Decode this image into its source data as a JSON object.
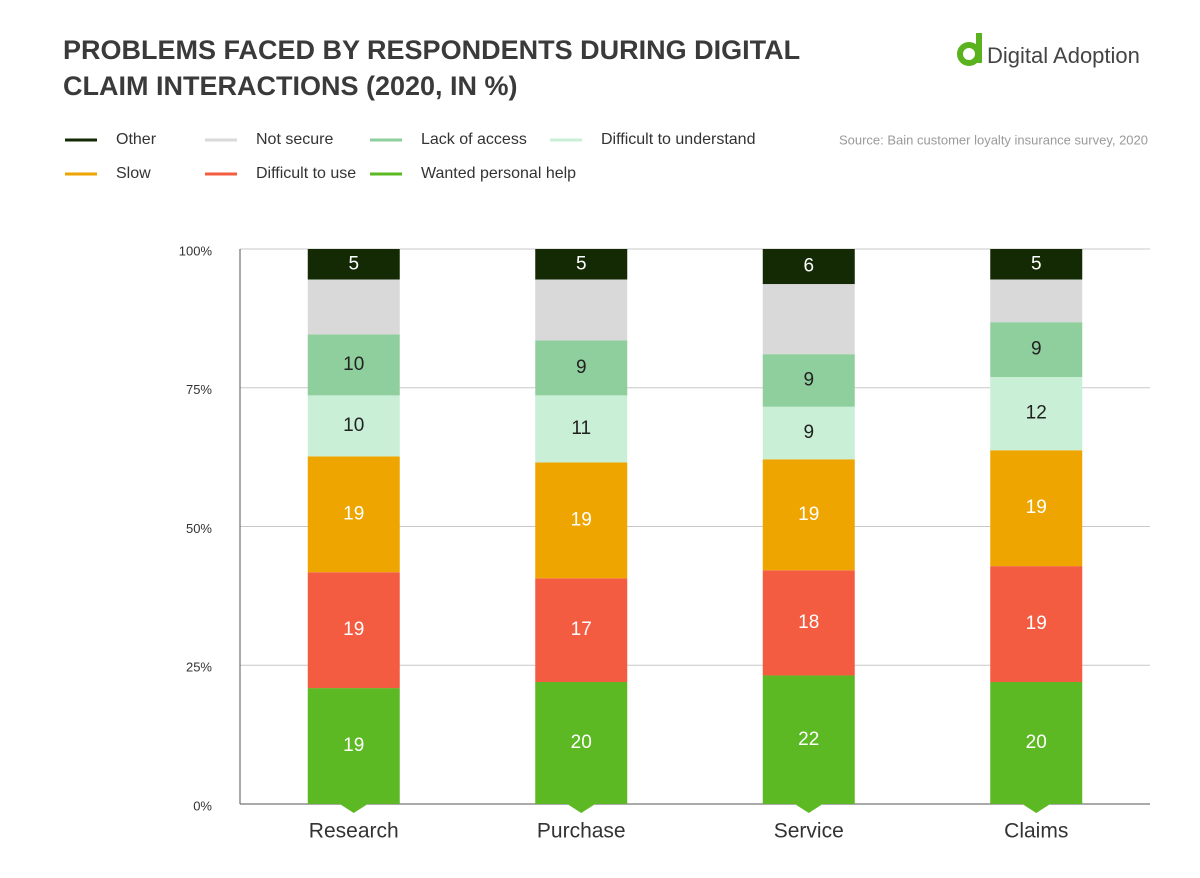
{
  "logo": "Digital Adoption",
  "chart_data": {
    "type": "bar",
    "stacked": "percent",
    "title": [
      "PROBLEMS FACED BY RESPONDENTS DURING DIGITAL",
      "CLAIM INTERACTIONS (2020, IN %)"
    ],
    "source": "Source: Bain customer loyalty insurance survey, 2020",
    "categories": [
      "Research",
      "Purchase",
      "Service",
      "Claims"
    ],
    "series": [
      {
        "name": "Other",
        "color": "#132a05",
        "values": [
          5,
          5,
          6,
          5
        ]
      },
      {
        "name": "Not secure",
        "color": "#d9d9d9",
        "values": [
          9,
          10,
          12,
          7
        ],
        "data_labels": false
      },
      {
        "name": "Lack of access",
        "color": "#8ecf9d",
        "values": [
          10,
          9,
          9,
          9
        ]
      },
      {
        "name": "Difficult to understand",
        "color": "#c9efd6",
        "values": [
          10,
          11,
          9,
          12
        ]
      },
      {
        "name": "Slow",
        "color": "#eea500",
        "values": [
          19,
          19,
          19,
          19
        ]
      },
      {
        "name": "Difficult to use",
        "color": "#f45c41",
        "values": [
          19,
          17,
          18,
          19
        ]
      },
      {
        "name": "Wanted personal help",
        "color": "#5cb823",
        "values": [
          19,
          20,
          22,
          20
        ]
      }
    ],
    "ylim": [
      0,
      100
    ],
    "yticks": [
      {
        "value": 0,
        "label": "0%"
      },
      {
        "value": 25,
        "label": "25%"
      },
      {
        "value": 50,
        "label": "50%"
      },
      {
        "value": 75,
        "label": "75%"
      },
      {
        "value": 100,
        "label": "100%"
      }
    ],
    "grid": true
  }
}
